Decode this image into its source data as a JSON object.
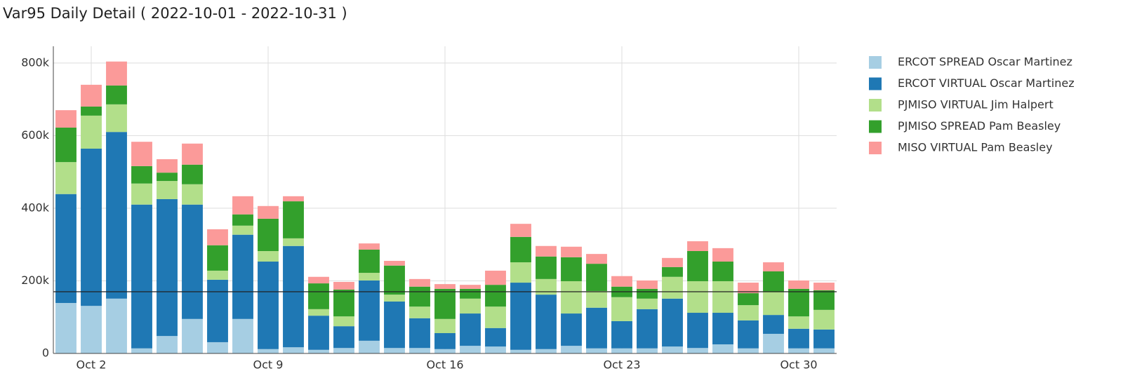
{
  "chart_data": {
    "type": "bar",
    "stacked": true,
    "title": "Var95 Daily Detail ( 2022-10-01 - 2022-10-31 )",
    "x": [
      1,
      2,
      3,
      4,
      5,
      6,
      7,
      8,
      9,
      10,
      11,
      12,
      13,
      14,
      15,
      16,
      17,
      18,
      19,
      20,
      21,
      22,
      23,
      24,
      25,
      26,
      27,
      28,
      29,
      30,
      31
    ],
    "xlim": [
      0.5,
      31.5
    ],
    "xticks": [
      {
        "value": 2,
        "label": "Oct 2"
      },
      {
        "value": 9,
        "label": "Oct 9"
      },
      {
        "value": 16,
        "label": "Oct 16"
      },
      {
        "value": 23,
        "label": "Oct 23"
      },
      {
        "value": 30,
        "label": "Oct 30"
      }
    ],
    "ylim": [
      0,
      846000
    ],
    "yticks": [
      0,
      {
        "value": 200000,
        "label": "200k"
      },
      {
        "value": 400000,
        "label": "400k"
      },
      {
        "value": 600000,
        "label": "600k"
      },
      {
        "value": 800000,
        "label": "800k"
      }
    ],
    "grid": true,
    "reference_line": 170000,
    "legend": "right",
    "series": [
      {
        "name": "ERCOT SPREAD Oscar Martinez",
        "color": "#a6cee3",
        "values": [
          139000,
          131000,
          151000,
          14000,
          48000,
          95000,
          31000,
          95000,
          12000,
          17000,
          10000,
          15000,
          35000,
          15000,
          15000,
          12000,
          21000,
          19000,
          10000,
          12000,
          21000,
          14000,
          14000,
          14000,
          19000,
          15000,
          25000,
          14000,
          54000,
          14000,
          14000
        ]
      },
      {
        "name": "ERCOT VIRTUAL Oscar Martinez",
        "color": "#1f78b4",
        "values": [
          300000,
          433000,
          459000,
          396000,
          377000,
          315000,
          172000,
          232000,
          241000,
          279000,
          94000,
          60000,
          166000,
          128000,
          82000,
          44000,
          89000,
          51000,
          185000,
          150000,
          89000,
          112000,
          75000,
          108000,
          132000,
          97000,
          87000,
          77000,
          52000,
          54000,
          52000
        ]
      },
      {
        "name": "PJMISO VIRTUAL Jim Halpert",
        "color": "#b2df8a",
        "values": [
          88000,
          91000,
          76000,
          58000,
          50000,
          56000,
          25000,
          25000,
          29000,
          21000,
          18000,
          27000,
          21000,
          19000,
          32000,
          39000,
          41000,
          59000,
          56000,
          43000,
          89000,
          46000,
          66000,
          29000,
          60000,
          87000,
          87000,
          42000,
          64000,
          34000,
          54000
        ]
      },
      {
        "name": "PJMISO SPREAD Pam Beasley",
        "color": "#33a02c",
        "values": [
          95000,
          25000,
          52000,
          48000,
          23000,
          54000,
          70000,
          31000,
          89000,
          102000,
          71000,
          74000,
          64000,
          80000,
          55000,
          83000,
          27000,
          60000,
          70000,
          62000,
          66000,
          75000,
          29000,
          27000,
          27000,
          83000,
          54000,
          33000,
          56000,
          76000,
          54000
        ]
      },
      {
        "name": "MISO VIRTUAL Pam Beasley",
        "color": "#fb9a99",
        "values": [
          48000,
          60000,
          66000,
          67000,
          37000,
          58000,
          44000,
          50000,
          35000,
          14000,
          18000,
          21000,
          17000,
          13000,
          21000,
          13000,
          11000,
          39000,
          36000,
          29000,
          29000,
          27000,
          29000,
          23000,
          25000,
          27000,
          37000,
          29000,
          25000,
          23000,
          21000
        ]
      }
    ]
  }
}
